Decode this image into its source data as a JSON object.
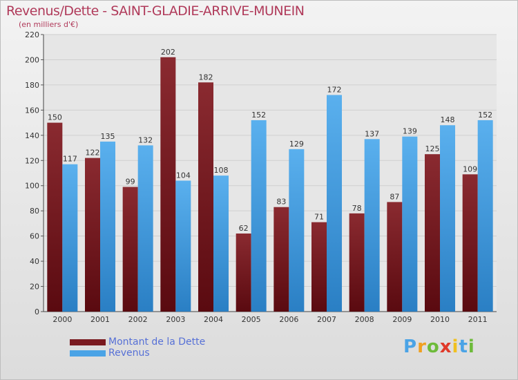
{
  "chart_data": {
    "type": "bar",
    "title": "Revenus/Dette - SAINT-GLADIE-ARRIVE-MUNEIN",
    "subtitle": "(en milliers d'€)",
    "categories": [
      "2000",
      "2001",
      "2002",
      "2003",
      "2004",
      "2005",
      "2006",
      "2007",
      "2008",
      "2009",
      "2010",
      "2011"
    ],
    "series": [
      {
        "name": "Montant de la Dette",
        "color": "#7a1a20",
        "values": [
          150,
          122,
          99,
          202,
          182,
          62,
          83,
          71,
          78,
          87,
          125,
          109
        ]
      },
      {
        "name": "Revenus",
        "color": "#4aa3e6",
        "values": [
          117,
          135,
          132,
          104,
          108,
          152,
          129,
          172,
          137,
          139,
          148,
          152
        ]
      }
    ],
    "ylim": [
      0,
      220
    ],
    "yticks": [
      0,
      20,
      40,
      60,
      80,
      100,
      120,
      140,
      160,
      180,
      200,
      220
    ],
    "grid": true,
    "legend_position": "bottom-left"
  },
  "brand": {
    "letters": [
      "P",
      "r",
      "o",
      "x",
      "i",
      "t",
      "i"
    ],
    "colors": [
      "#4aa3e6",
      "#f0a020",
      "#6dbb3a",
      "#e03a2a",
      "#f0c020",
      "#4aa3e6",
      "#6dbb3a"
    ]
  }
}
